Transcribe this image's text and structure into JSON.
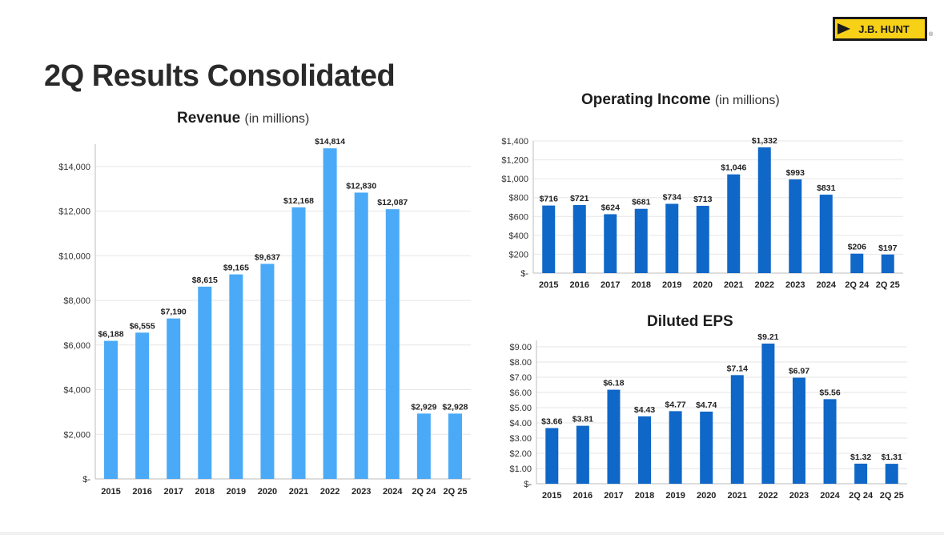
{
  "page": {
    "title": "2Q Results Consolidated",
    "logo_text": "J.B. HUNT",
    "logo_mark": "®"
  },
  "colors": {
    "revenue_bar": "#4AAAF7",
    "income_bar": "#0F67C8",
    "eps_bar": "#0F67C8",
    "logo_yellow": "#F7D117"
  },
  "chart_data": [
    {
      "id": "revenue",
      "type": "bar",
      "title": "Revenue",
      "subtitle": "(in millions)",
      "categories": [
        "2015",
        "2016",
        "2017",
        "2018",
        "2019",
        "2020",
        "2021",
        "2022",
        "2023",
        "2024",
        "2Q 24",
        "2Q 25"
      ],
      "values": [
        6188,
        6555,
        7190,
        8615,
        9165,
        9637,
        12168,
        14814,
        12830,
        12087,
        2929,
        2928
      ],
      "value_labels": [
        "$6,188",
        "$6,555",
        "$7,190",
        "$8,615",
        "$9,165",
        "$9,637",
        "$12,168",
        "$14,814",
        "$12,830",
        "$12,087",
        "$2,929",
        "$2,928"
      ],
      "ylim": [
        0,
        15000
      ],
      "yticks": [
        0,
        2000,
        4000,
        6000,
        8000,
        10000,
        12000,
        14000
      ],
      "ytick_labels": [
        "$-",
        "$2,000",
        "$4,000",
        "$6,000",
        "$8,000",
        "$10,000",
        "$12,000",
        "$14,000"
      ],
      "grid": true
    },
    {
      "id": "operating-income",
      "type": "bar",
      "title": "Operating Income",
      "subtitle": "(in millions)",
      "categories": [
        "2015",
        "2016",
        "2017",
        "2018",
        "2019",
        "2020",
        "2021",
        "2022",
        "2023",
        "2024",
        "2Q 24",
        "2Q 25"
      ],
      "values": [
        716,
        721,
        624,
        681,
        734,
        713,
        1046,
        1332,
        993,
        831,
        206,
        197
      ],
      "value_labels": [
        "$716",
        "$721",
        "$624",
        "$681",
        "$734",
        "$713",
        "$1,046",
        "$1,332",
        "$993",
        "$831",
        "$206",
        "$197"
      ],
      "ylim": [
        0,
        1400
      ],
      "yticks": [
        0,
        200,
        400,
        600,
        800,
        1000,
        1200,
        1400
      ],
      "ytick_labels": [
        "$-",
        "$200",
        "$400",
        "$600",
        "$800",
        "$1,000",
        "$1,200",
        "$1,400"
      ],
      "grid": true
    },
    {
      "id": "diluted-eps",
      "type": "bar",
      "title": "Diluted EPS",
      "subtitle": "",
      "categories": [
        "2015",
        "2016",
        "2017",
        "2018",
        "2019",
        "2020",
        "2021",
        "2022",
        "2023",
        "2024",
        "2Q 24",
        "2Q 25"
      ],
      "values": [
        3.66,
        3.81,
        6.18,
        4.43,
        4.77,
        4.74,
        7.14,
        9.21,
        6.97,
        5.56,
        1.32,
        1.31
      ],
      "value_labels": [
        "$3.66",
        "$3.81",
        "$6.18",
        "$4.43",
        "$4.77",
        "$4.74",
        "$7.14",
        "$9.21",
        "$6.97",
        "$5.56",
        "$1.32",
        "$1.31"
      ],
      "ylim": [
        0,
        9
      ],
      "yticks": [
        0,
        1,
        2,
        3,
        4,
        5,
        6,
        7,
        8,
        9
      ],
      "ytick_labels": [
        "$-",
        "$1.00",
        "$2.00",
        "$3.00",
        "$4.00",
        "$5.00",
        "$6.00",
        "$7.00",
        "$8.00",
        "$9.00"
      ],
      "grid": true
    }
  ]
}
